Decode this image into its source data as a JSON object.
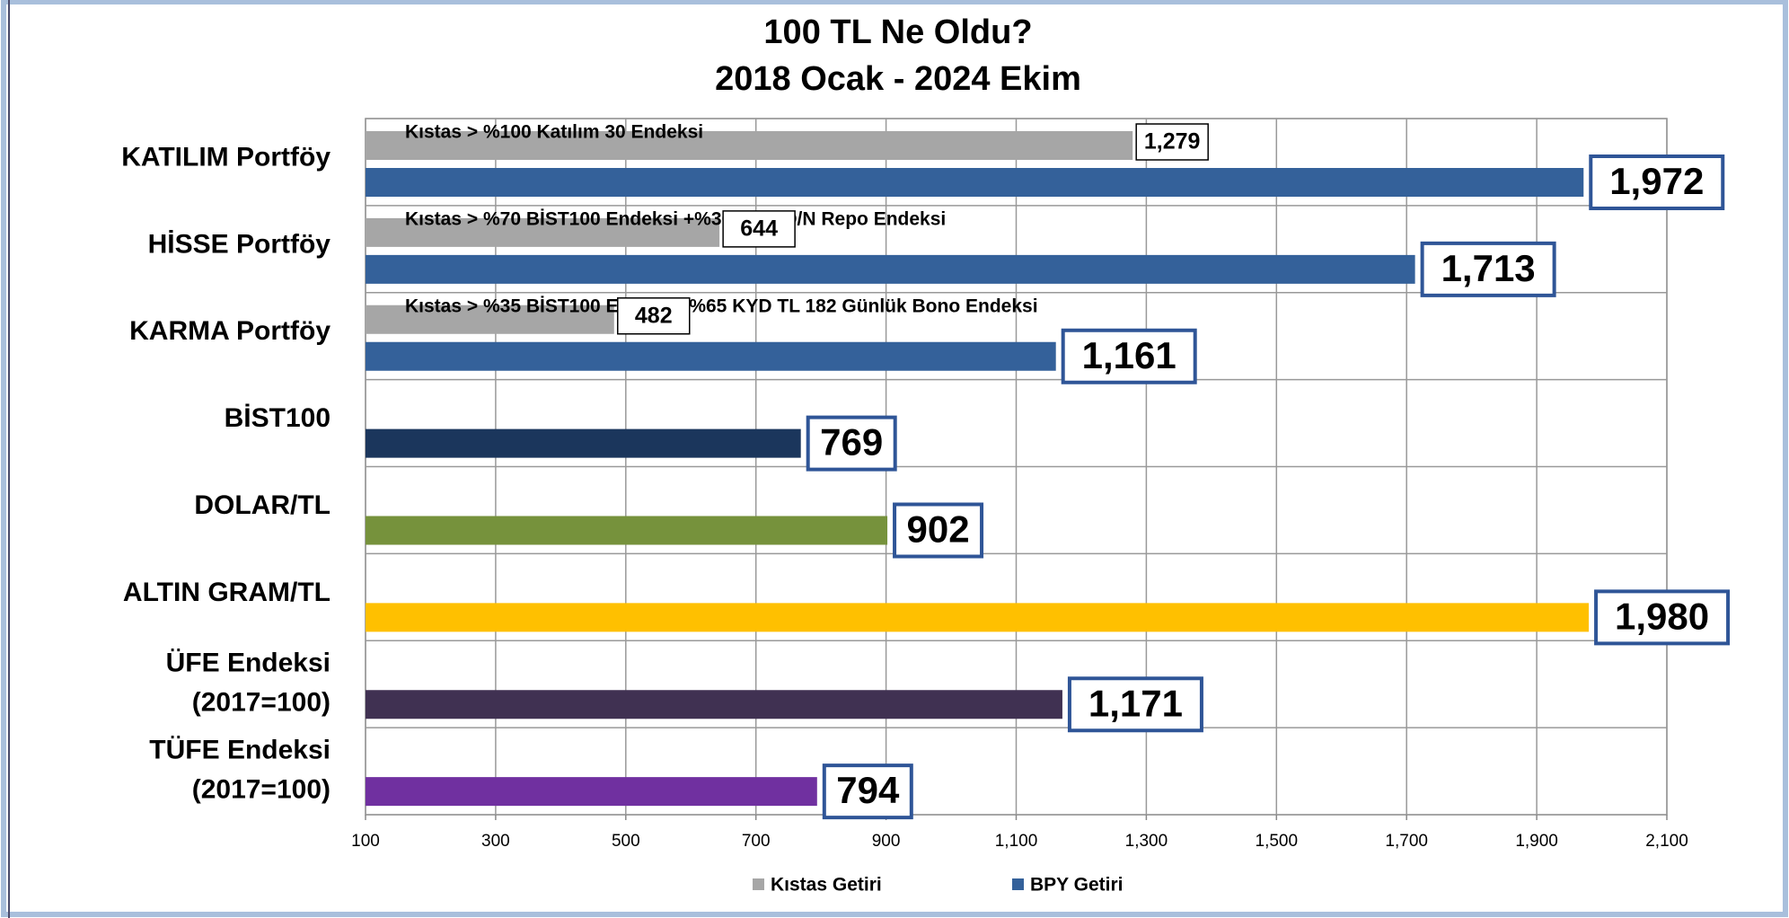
{
  "chart_data": {
    "type": "bar",
    "orientation": "horizontal",
    "title": "100 TL Ne Oldu?",
    "subtitle": "2018 Ocak - 2024 Ekim",
    "categories": [
      "KATILIM Portföy",
      "HİSSE Portföy",
      "KARMA Portföy",
      "BİST100",
      "DOLAR/TL",
      "ALTIN GRAM/TL",
      "ÜFE Endeksi\n(2017=100)",
      "TÜFE Endeksi\n(2017=100)"
    ],
    "series": [
      {
        "name": "Kıstas Getiri",
        "color": "#a6a6a6",
        "values": [
          1279,
          644,
          482,
          null,
          null,
          null,
          null,
          null
        ],
        "value_labels": [
          "1,279",
          "644",
          "482",
          null,
          null,
          null,
          null,
          null
        ],
        "annotations": [
          "Kıstas > %100 Katılım 30 Endeksi",
          "Kıstas > %70 BİST100 Endeksi +%30 KYD O/N Repo Endeksi",
          "Kıstas > %35 BİST100 Endeksi+%65 KYD TL 182 Günlük Bono Endeksi",
          null,
          null,
          null,
          null,
          null
        ]
      },
      {
        "name": "BPY Getiri",
        "color": "#34619a",
        "values": [
          1972,
          1713,
          1161,
          769,
          902,
          1980,
          1171,
          794
        ],
        "value_labels": [
          "1,972",
          "1,713",
          "1,161",
          "769",
          "902",
          "1,980",
          "1,171",
          "794"
        ],
        "colors": [
          "#34619a",
          "#34619a",
          "#34619a",
          "#1b365c",
          "#76923c",
          "#ffc000",
          "#403152",
          "#7030a0"
        ]
      }
    ],
    "xlim": [
      100,
      2100
    ],
    "xticks": [
      100,
      300,
      500,
      700,
      900,
      {
        "value": 1100,
        "label": "1,100"
      },
      {
        "value": 1300,
        "label": "1,300"
      },
      {
        "value": 1500,
        "label": "1,500"
      },
      {
        "value": 1700,
        "label": "1,700"
      },
      {
        "value": 1900,
        "label": "1,900"
      },
      {
        "value": 2100,
        "label": "2,100"
      }
    ],
    "grid": true
  }
}
